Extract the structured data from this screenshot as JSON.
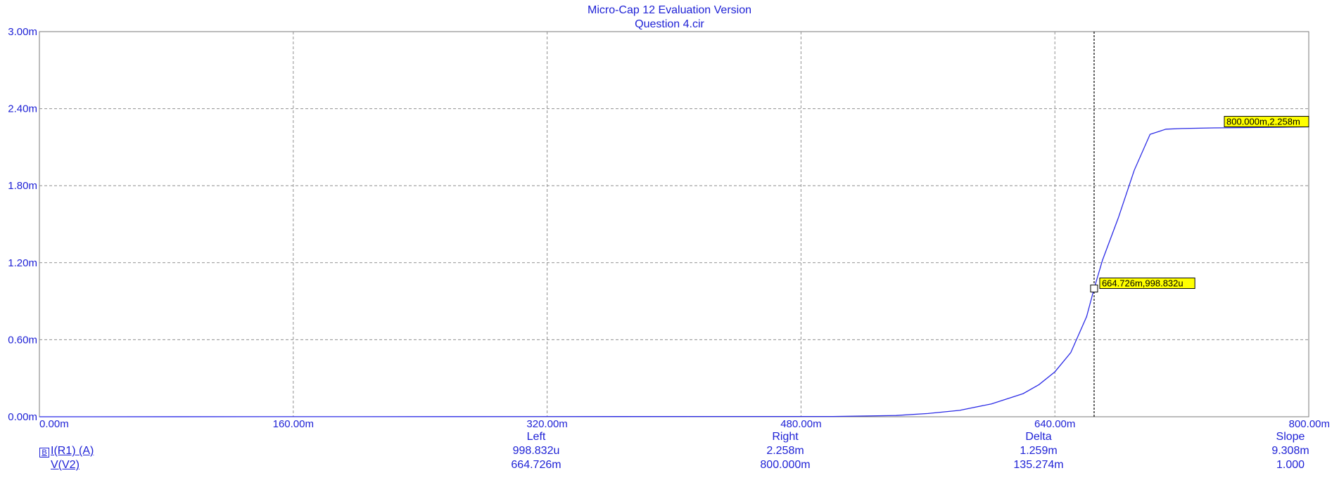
{
  "window": {
    "title": "Micro-Cap 12 Evaluation Version",
    "subtitle": "Question 4.cir"
  },
  "colors": {
    "text": "#1f22d6",
    "curve": "#2b2be6",
    "grid": "#909090",
    "label_bg": "#ffff00"
  },
  "chart_data": {
    "type": "line",
    "title": "Micro-Cap 12 Evaluation Version",
    "subtitle": "Question 4.cir",
    "x_axis": {
      "min": 0,
      "max": 800,
      "unit": "m",
      "ticks": [
        "0.00m",
        "160.00m",
        "320.00m",
        "480.00m",
        "640.00m",
        "800.00m"
      ]
    },
    "y_axis": {
      "min": 0,
      "max": 3.0,
      "unit": "m",
      "ticks": [
        "0.00m",
        "0.60m",
        "1.20m",
        "1.80m",
        "2.40m",
        "3.00m"
      ]
    },
    "grid": true,
    "series": [
      {
        "name": "I(R1) (A)",
        "x": [
          0,
          500,
          540,
          560,
          580,
          600,
          620,
          630,
          640,
          650,
          660,
          664.726,
          670,
          680,
          690,
          700,
          710,
          720,
          740,
          760,
          780,
          800
        ],
        "y": [
          0,
          0.002,
          0.01,
          0.025,
          0.05,
          0.1,
          0.18,
          0.25,
          0.35,
          0.5,
          0.78,
          0.998832,
          1.22,
          1.55,
          1.92,
          2.2,
          2.24,
          2.245,
          2.25,
          2.252,
          2.255,
          2.258
        ]
      }
    ],
    "cursor": {
      "x": 664.726
    },
    "data_labels": [
      {
        "text": "664.726m,998.832u",
        "x": 664.726,
        "y": 0.998832
      },
      {
        "text": "800.000m,2.258m",
        "x": 800,
        "y": 2.258
      }
    ]
  },
  "stats": {
    "headers": [
      "Left",
      "Right",
      "Delta",
      "Slope"
    ],
    "rows": [
      {
        "label": "I(R1) (A)",
        "icon": "B",
        "values": [
          "998.832u",
          "2.258m",
          "1.259m",
          "9.308m"
        ]
      },
      {
        "label": "V(V2)",
        "values": [
          "664.726m",
          "800.000m",
          "135.274m",
          "1.000"
        ]
      }
    ]
  }
}
